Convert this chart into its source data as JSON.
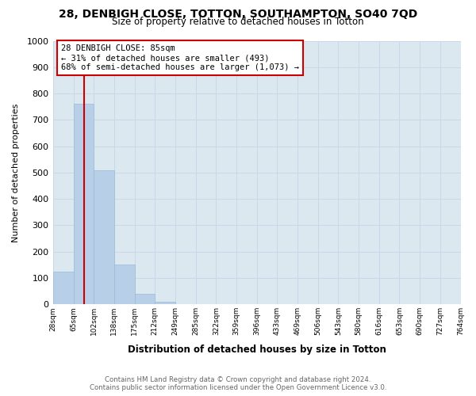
{
  "title": "28, DENBIGH CLOSE, TOTTON, SOUTHAMPTON, SO40 7QD",
  "subtitle": "Size of property relative to detached houses in Totton",
  "xlabel": "Distribution of detached houses by size in Totton",
  "ylabel": "Number of detached properties",
  "bar_values": [
    125,
    760,
    510,
    150,
    40,
    10,
    0,
    0,
    0,
    0,
    0,
    0,
    0,
    0,
    0,
    0,
    0,
    0,
    0,
    0
  ],
  "bin_labels": [
    "28sqm",
    "65sqm",
    "102sqm",
    "138sqm",
    "175sqm",
    "212sqm",
    "249sqm",
    "285sqm",
    "322sqm",
    "359sqm",
    "396sqm",
    "433sqm",
    "469sqm",
    "506sqm",
    "543sqm",
    "580sqm",
    "616sqm",
    "653sqm",
    "690sqm",
    "727sqm",
    "764sqm"
  ],
  "bar_color": "#b8cfe8",
  "bar_edge_color": "#9bbad8",
  "vline_color": "#cc0000",
  "annotation_title": "28 DENBIGH CLOSE: 85sqm",
  "annotation_line1": "← 31% of detached houses are smaller (493)",
  "annotation_line2": "68% of semi-detached houses are larger (1,073) →",
  "ylim": [
    0,
    1000
  ],
  "yticks": [
    0,
    100,
    200,
    300,
    400,
    500,
    600,
    700,
    800,
    900,
    1000
  ],
  "footer_line1": "Contains HM Land Registry data © Crown copyright and database right 2024.",
  "footer_line2": "Contains public sector information licensed under the Open Government Licence v3.0.",
  "bg_color": "#ffffff",
  "grid_color": "#c8d8e8",
  "plot_bg_color": "#dce8f0"
}
